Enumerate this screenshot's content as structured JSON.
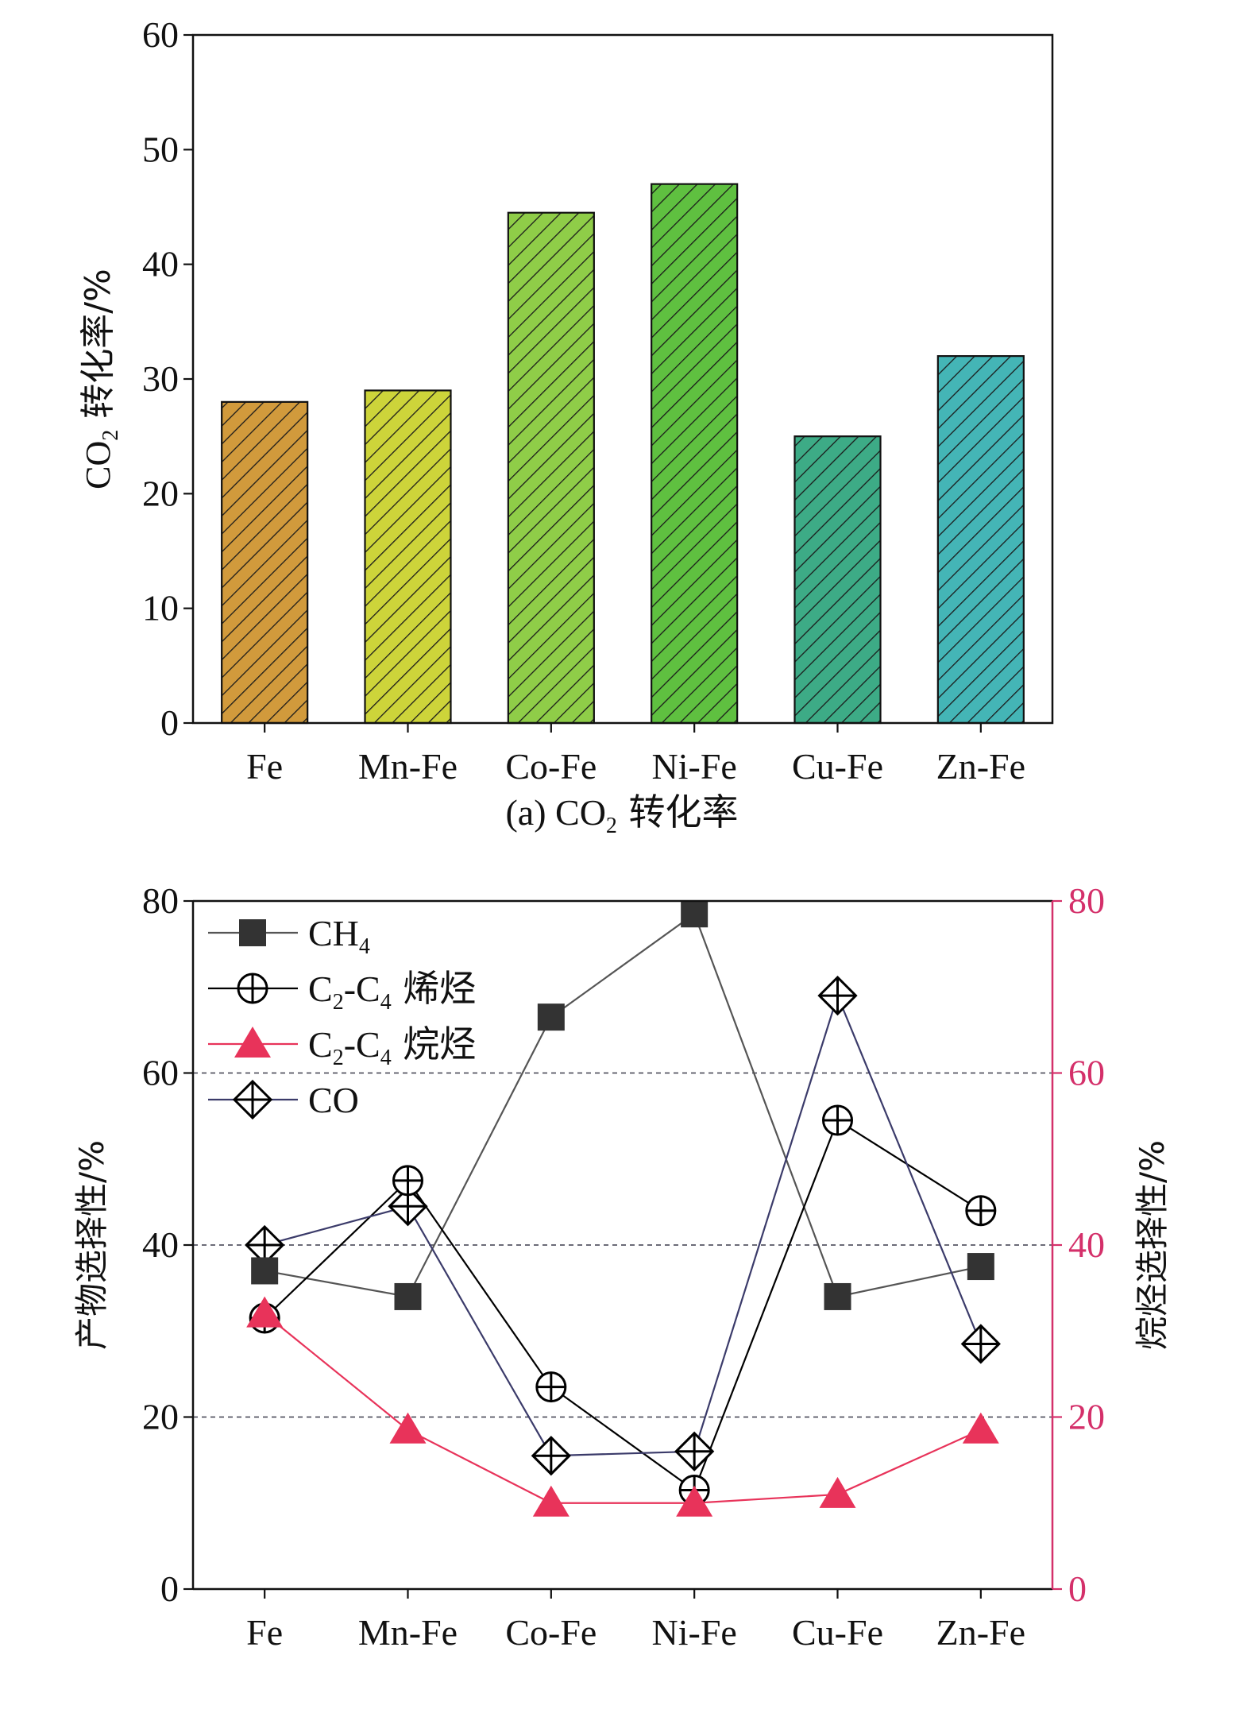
{
  "chart_data": [
    {
      "type": "bar",
      "title": "(a) CO₂ 转化率",
      "title_parts": {
        "prefix": "(a) CO",
        "sub": "2",
        "suffix": " 转化率"
      },
      "ylabel": "CO₂ 转化率/%",
      "ylabel_parts": {
        "prefix": "CO",
        "sub": "2",
        "suffix": " 转化率/%"
      },
      "categories": [
        "Fe",
        "Mn-Fe",
        "Co-Fe",
        "Ni-Fe",
        "Cu-Fe",
        "Zn-Fe"
      ],
      "values": [
        28,
        29,
        44.5,
        47,
        25,
        32
      ],
      "ylim": [
        0,
        60
      ],
      "yticks": [
        0,
        10,
        20,
        30,
        40,
        50,
        60
      ],
      "bar_colors": [
        "#d19a3c",
        "#cdd43a",
        "#8fcd48",
        "#5fc040",
        "#3dab86",
        "#44b5b6"
      ],
      "pattern": "diagonal-hatch",
      "grid": false
    },
    {
      "type": "line",
      "ylabel": "产物选择性/%",
      "y2label": "烷烃选择性/%",
      "categories": [
        "Fe",
        "Mn-Fe",
        "Co-Fe",
        "Ni-Fe",
        "Cu-Fe",
        "Zn-Fe"
      ],
      "ylim": [
        0,
        80
      ],
      "y2lim": [
        0,
        80
      ],
      "yticks": [
        0,
        20,
        40,
        60,
        80
      ],
      "grid": "dashed horizontal at 20, 40, 60",
      "legend_position": "top-left",
      "series": [
        {
          "name": "CH₄",
          "name_parts": {
            "prefix": "CH",
            "sub": "4",
            "suffix": ""
          },
          "marker": "square",
          "color": "#333333",
          "values": [
            37,
            34,
            66.5,
            78.5,
            34,
            37.5
          ],
          "axis": "left"
        },
        {
          "name": "C₂-C₄ 烯烃",
          "name_parts": {
            "prefix": "C",
            "sub": "2",
            "mid": "-C",
            "sub2": "4",
            "suffix": " 烯烃"
          },
          "marker": "circle-plus",
          "color": "#000000",
          "values": [
            31.5,
            47.5,
            23.5,
            11.5,
            54.5,
            44
          ],
          "axis": "left"
        },
        {
          "name": "C₂-C₄ 烷烃",
          "name_parts": {
            "prefix": "C",
            "sub": "2",
            "mid": "-C",
            "sub2": "4",
            "suffix": " 烷烃"
          },
          "marker": "triangle",
          "color": "#e8335a",
          "values": [
            32,
            18.5,
            10,
            10,
            11,
            18.5
          ],
          "axis": "right"
        },
        {
          "name": "CO",
          "name_parts": {
            "prefix": "CO",
            "sub": "",
            "suffix": ""
          },
          "marker": "diamond-plus",
          "color": "#000000",
          "values": [
            40,
            44.5,
            15.5,
            16,
            69,
            28.5
          ],
          "axis": "left"
        }
      ],
      "colors": {
        "right_axis": "#d4306a",
        "grid": "#3a3a4a",
        "ch4_line": "#555555",
        "co_line": "#3b3b6a"
      }
    }
  ]
}
